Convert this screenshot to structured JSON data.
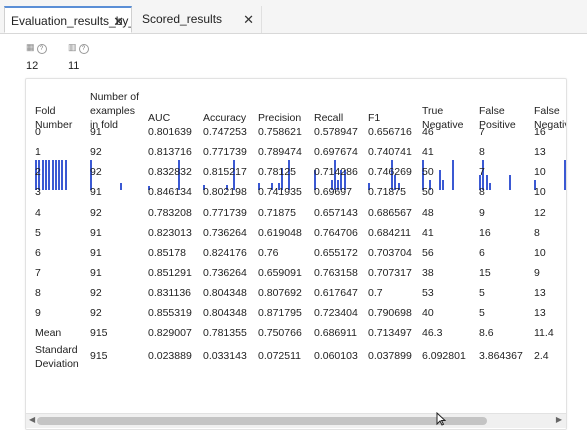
{
  "tabs": [
    {
      "label": "Evaluation_results_by_f",
      "active": true
    },
    {
      "label": "Scored_results",
      "active": false
    }
  ],
  "summary": [
    {
      "icon": "rows-icon",
      "value": "12"
    },
    {
      "icon": "columns-icon",
      "value": "11"
    }
  ],
  "table": {
    "headers": [
      "Fold Number",
      "Number of examples in fold",
      "AUC",
      "Accuracy",
      "Precision",
      "Recall",
      "F1",
      "True Negative",
      "False Positive",
      "False Negative"
    ],
    "rows": [
      [
        "0",
        "91",
        "0.801639",
        "0.747253",
        "0.758621",
        "0.578947",
        "0.656716",
        "46",
        "7",
        "16"
      ],
      [
        "1",
        "92",
        "0.813716",
        "0.771739",
        "0.789474",
        "0.697674",
        "0.740741",
        "41",
        "8",
        "13"
      ],
      [
        "2",
        "92",
        "0.832832",
        "0.815217",
        "0.78125",
        "0.714286",
        "0.746269",
        "50",
        "7",
        "10"
      ],
      [
        "3",
        "91",
        "0.846134",
        "0.802198",
        "0.741935",
        "0.69697",
        "0.71875",
        "50",
        "8",
        "10"
      ],
      [
        "4",
        "92",
        "0.783208",
        "0.771739",
        "0.71875",
        "0.657143",
        "0.686567",
        "48",
        "9",
        "12"
      ],
      [
        "5",
        "91",
        "0.823013",
        "0.736264",
        "0.619048",
        "0.764706",
        "0.684211",
        "41",
        "16",
        "8"
      ],
      [
        "6",
        "91",
        "0.85178",
        "0.824176",
        "0.76",
        "0.655172",
        "0.703704",
        "56",
        "6",
        "10"
      ],
      [
        "7",
        "91",
        "0.851291",
        "0.736264",
        "0.659091",
        "0.763158",
        "0.707317",
        "38",
        "15",
        "9"
      ],
      [
        "8",
        "92",
        "0.831136",
        "0.804348",
        "0.807692",
        "0.617647",
        "0.7",
        "53",
        "5",
        "13"
      ],
      [
        "9",
        "92",
        "0.855319",
        "0.804348",
        "0.871795",
        "0.723404",
        "0.790698",
        "40",
        "5",
        "13"
      ],
      [
        "Mean",
        "915",
        "0.829007",
        "0.781355",
        "0.750766",
        "0.686911",
        "0.713497",
        "46.3",
        "8.6",
        "11.4"
      ],
      [
        "Standard Deviation",
        "915",
        "0.023889",
        "0.033143",
        "0.072511",
        "0.060103",
        "0.037899",
        "6.092801",
        "3.864367",
        "2.4"
      ]
    ]
  },
  "histograms": [
    [
      1,
      1,
      1,
      1,
      1,
      1,
      1,
      1,
      1,
      1
    ],
    [
      8,
      0,
      0,
      0,
      0,
      0,
      0,
      0,
      0,
      2
    ],
    [
      1,
      0,
      0,
      0,
      0,
      0,
      0,
      0,
      0,
      7
    ],
    [
      1,
      0,
      0,
      0,
      0,
      0,
      0,
      1,
      0,
      6
    ],
    [
      1,
      0,
      0,
      0,
      1,
      0,
      1,
      3,
      0,
      4
    ],
    [
      2,
      0,
      0,
      0,
      0,
      1,
      3,
      1,
      2,
      2
    ],
    [
      1,
      0,
      0,
      0,
      0,
      0,
      0,
      4,
      2,
      1
    ],
    [
      3,
      0,
      1,
      0,
      0,
      2,
      1,
      0,
      0,
      3
    ],
    [
      2,
      4,
      2,
      1,
      0,
      0,
      0,
      0,
      0,
      2
    ],
    [
      1,
      0,
      0,
      0,
      0,
      0,
      0,
      0,
      0,
      3
    ]
  ],
  "colors": {
    "histogram_bar": "#3b59d3",
    "tab_accent": "#5b8fd6"
  }
}
